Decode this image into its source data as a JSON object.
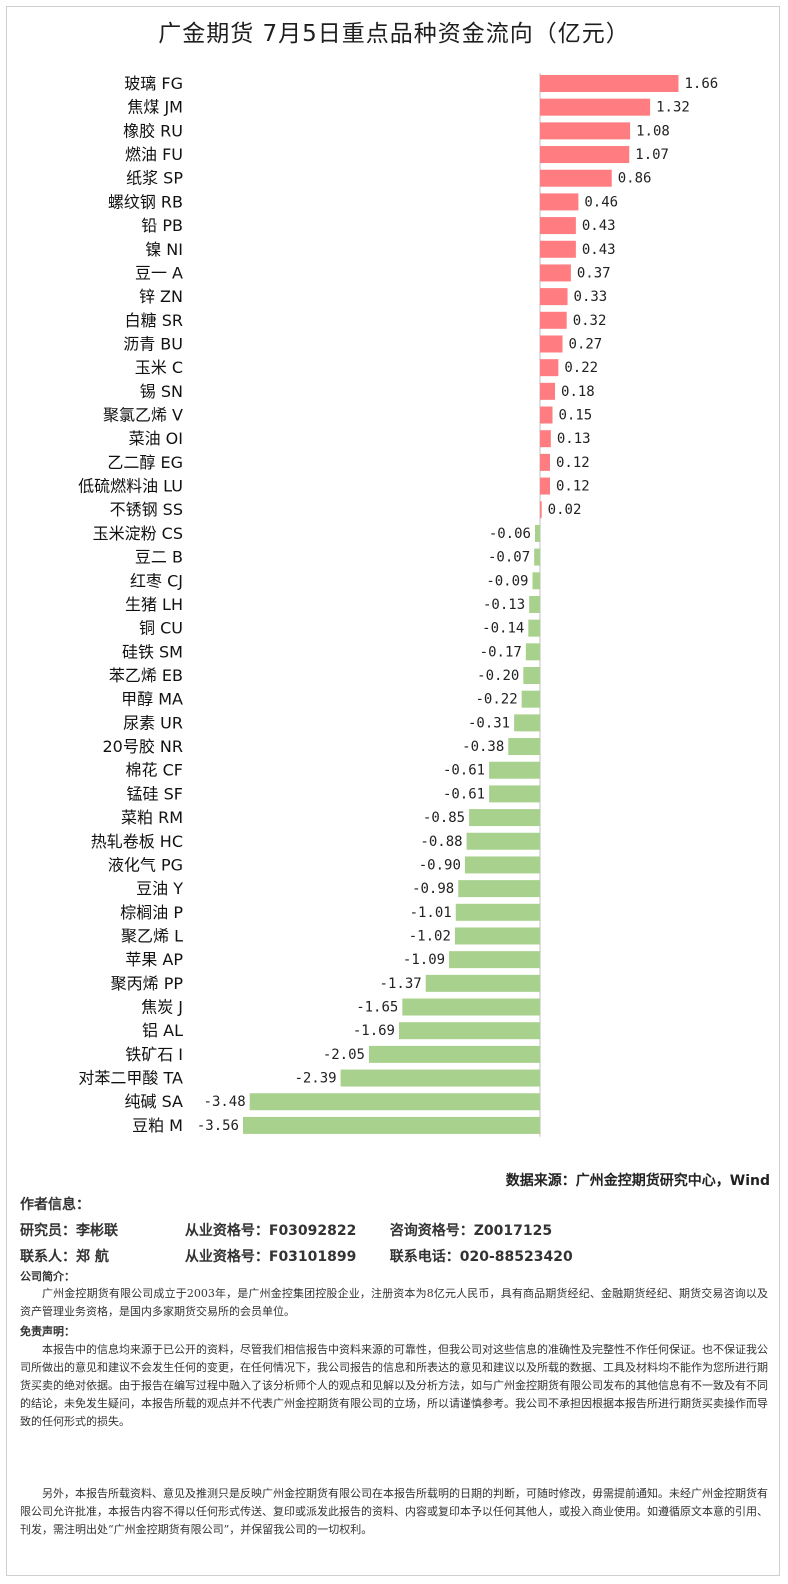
{
  "title": "广金期货 7月5日重点品种资金流向（亿元）",
  "colors": {
    "positive": "#ff7c80",
    "negative": "#a9d18e"
  },
  "chart_data": {
    "type": "bar",
    "orientation": "horizontal",
    "title": "广金期货 7月5日重点品种资金流向（亿元）",
    "unit": "亿元",
    "categories": [
      "玻璃 FG",
      "焦煤 JM",
      "橡胶 RU",
      "燃油 FU",
      "纸浆 SP",
      "螺纹钢 RB",
      "铅 PB",
      "镍 NI",
      "豆一 A",
      "锌 ZN",
      "白糖 SR",
      "沥青 BU",
      "玉米 C",
      "锡 SN",
      "聚氯乙烯 V",
      "菜油 OI",
      "乙二醇 EG",
      "低硫燃料油 LU",
      "不锈钢 SS",
      "玉米淀粉 CS",
      "豆二 B",
      "红枣 CJ",
      "生猪 LH",
      "铜 CU",
      "硅铁 SM",
      "苯乙烯 EB",
      "甲醇 MA",
      "尿素 UR",
      "20号胶 NR",
      "棉花 CF",
      "锰硅 SF",
      "菜粕 RM",
      "热轧卷板 HC",
      "液化气 PG",
      "豆油 Y",
      "棕榈油 P",
      "聚乙烯 L",
      "苹果 AP",
      "聚丙烯 PP",
      "焦炭 J",
      "铝 AL",
      "铁矿石 I",
      "对苯二甲酸 TA",
      "纯碱 SA",
      "豆粕 M"
    ],
    "values": [
      1.66,
      1.32,
      1.08,
      1.07,
      0.86,
      0.46,
      0.43,
      0.43,
      0.37,
      0.33,
      0.32,
      0.27,
      0.22,
      0.18,
      0.15,
      0.13,
      0.12,
      0.12,
      0.02,
      -0.06,
      -0.07,
      -0.09,
      -0.13,
      -0.14,
      -0.17,
      -0.2,
      -0.22,
      -0.31,
      -0.38,
      -0.61,
      -0.61,
      -0.85,
      -0.88,
      -0.9,
      -0.98,
      -1.01,
      -1.02,
      -1.09,
      -1.37,
      -1.65,
      -1.69,
      -2.05,
      -2.39,
      -3.48,
      -3.56
    ],
    "value_labels": [
      "1.66",
      "1.32",
      "1.08",
      "1.07",
      "0.86",
      "0.46",
      "0.43",
      "0.43",
      "0.37",
      "0.33",
      "0.32",
      "0.27",
      "0.22",
      "0.18",
      "0.15",
      "0.13",
      "0.12",
      "0.12",
      "0.02",
      "-0.06",
      "-0.07",
      "-0.09",
      "-0.13",
      "-0.14",
      "-0.17",
      "-0.20",
      "-0.22",
      "-0.31",
      "-0.38",
      "-0.61",
      "-0.61",
      "-0.85",
      "-0.88",
      "-0.90",
      "-0.98",
      "-1.01",
      "-1.02",
      "-1.09",
      "-1.37",
      "-1.65",
      "-1.69",
      "-2.05",
      "-2.39",
      "-3.48",
      "-3.56"
    ],
    "xlim": [
      -3.56,
      1.66
    ]
  },
  "source": "数据来源：广州金控期货研究中心，Wind",
  "author": {
    "heading": "作者信息：",
    "row1": [
      "研究员：李彬联",
      "从业资格号：F03092822",
      "咨询资格号：Z0017125"
    ],
    "row2": [
      "联系人：郑  航",
      "从业资格号：F03101899",
      "联系电话：020-88523420"
    ]
  },
  "company_intro": {
    "heading": "公司简介：",
    "text": "广州金控期货有限公司成立于2003年，是广州金控集团控股企业，注册资本为8亿元人民币，具有商品期货经纪、金融期货经纪、期货交易咨询以及资产管理业务资格，是国内多家期货交易所的会员单位。"
  },
  "disclaimer": {
    "heading": "免责声明：",
    "p1": "本报告中的信息均来源于已公开的资料，尽管我们相信报告中资料来源的可靠性，但我公司对这些信息的准确性及完整性不作任何保证。也不保证我公司所做出的意见和建议不会发生任何的变更，在任何情况下，我公司报告的信息和所表达的意见和建议以及所载的数据、工具及材料均不能作为您所进行期货买卖的绝对依据。由于报告在编写过程中融入了该分析师个人的观点和见解以及分析方法，如与广州金控期货有限公司发布的其他信息有不一致及有不同的结论，未免发生疑问，本报告所载的观点并不代表广州金控期货有限公司的立场，所以请谨慎参考。我公司不承担因根据本报告所进行期货买卖操作而导致的任何形式的损失。",
    "p2": "另外，本报告所载资料、意见及推测只是反映广州金控期货有限公司在本报告所载明的日期的判断，可随时修改，毋需提前通知。未经广州金控期货有限公司允许批准，本报告内容不得以任何形式传送、复印或派发此报告的资料、内容或复印本予以任何其他人，或投入商业使用。如遵循原文本意的引用、刊发，需注明出处“广州金控期货有限公司”，并保留我公司的一切权利。"
  }
}
